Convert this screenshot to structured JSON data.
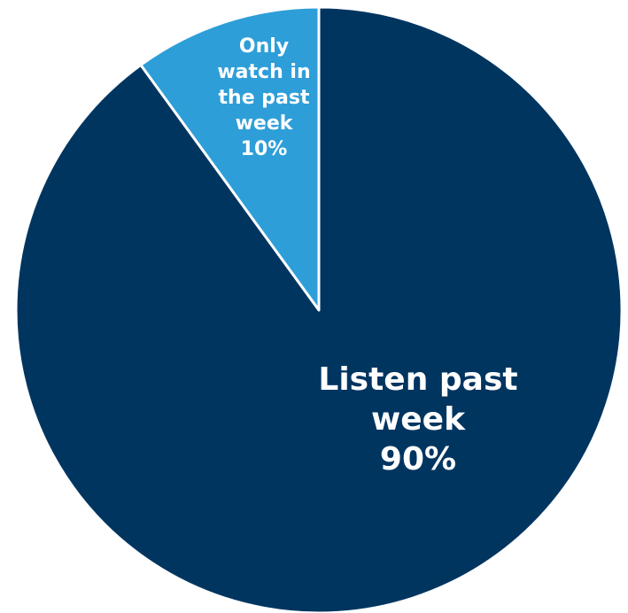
{
  "chart_data": {
    "type": "pie",
    "title": "",
    "start_angle_deg": 0,
    "direction": "counterclockwise",
    "slices": [
      {
        "name": "Listen past week",
        "label_lines": [
          "Listen past",
          "week",
          "90%"
        ],
        "value": 90,
        "color": "#003560"
      },
      {
        "name": "Only watch in the past week",
        "label_lines": [
          "Only",
          "watch in",
          "the past",
          "week",
          "10%"
        ],
        "value": 10,
        "color": "#2e9ed8"
      }
    ],
    "slice_border_color": "#ffffff",
    "legend": "none"
  }
}
